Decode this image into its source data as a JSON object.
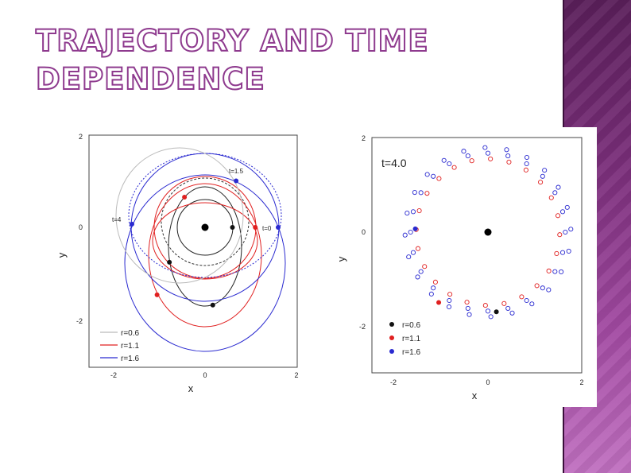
{
  "slide": {
    "title_line1": "TRAJECTORY AND TIME",
    "title_line2": "DEPENDENCE"
  },
  "colors": {
    "r06": "#111111",
    "r11": "#e02020",
    "r16": "#2a2ad0",
    "title_outline": "#8e3a8e",
    "accent_strip": "#7a2e7a"
  },
  "chart_data": [
    {
      "type": "line",
      "xlabel": "x",
      "ylabel": "y",
      "xlim": [
        -2,
        2
      ],
      "ylim": [
        -3,
        2
      ],
      "xticks": [
        "-2",
        "0",
        "2"
      ],
      "yticks": [
        "2",
        "0",
        "-2"
      ],
      "annotations": [
        "t=1.5",
        "t=4",
        "t=0"
      ],
      "legend_position": "bottom-left",
      "series": [
        {
          "name": "r=0.6",
          "type": "line"
        },
        {
          "name": "r=1.1",
          "type": "line"
        },
        {
          "name": "r=1.6",
          "type": "line"
        }
      ],
      "points": [
        {
          "series": "r=0.6",
          "x": 0.6,
          "y": 0.0
        },
        {
          "series": "r=0.6",
          "x": -0.78,
          "y": -0.75
        },
        {
          "series": "r=0.6",
          "x": 0.17,
          "y": -1.67
        },
        {
          "series": "r=1.1",
          "x": 1.1,
          "y": 0.0
        },
        {
          "series": "r=1.1",
          "x": -0.45,
          "y": 0.65
        },
        {
          "series": "r=1.1",
          "x": -1.05,
          "y": -1.45
        },
        {
          "series": "r=1.6",
          "x": 1.6,
          "y": 0.0
        },
        {
          "series": "r=1.6",
          "x": -1.6,
          "y": 0.07
        },
        {
          "series": "r=1.6",
          "x": 0.68,
          "y": 1.0
        }
      ],
      "center": {
        "x": 0,
        "y": 0
      }
    },
    {
      "type": "scatter",
      "xlabel": "x",
      "ylabel": "y",
      "xlim": [
        -2,
        2
      ],
      "ylim": [
        -3,
        2
      ],
      "xticks": [
        "-2",
        "0",
        "2"
      ],
      "yticks": [
        "2",
        "0",
        "-2"
      ],
      "annotation": "t=4.0",
      "legend_position": "bottom-left",
      "series": [
        {
          "name": "r=0.6",
          "marker": "filled"
        },
        {
          "name": "r=1.1",
          "marker": "filled"
        },
        {
          "name": "r=1.6",
          "marker": "filled"
        }
      ],
      "ring_radius": 1.65,
      "ring_groups": 24,
      "points": [
        {
          "series": "r=0.6",
          "x": 0.18,
          "y": -1.7
        },
        {
          "series": "r=1.1",
          "x": -1.05,
          "y": -1.5
        },
        {
          "series": "r=1.6",
          "x": -1.55,
          "y": 0.07
        }
      ],
      "center": {
        "x": 0,
        "y": 0
      }
    }
  ]
}
